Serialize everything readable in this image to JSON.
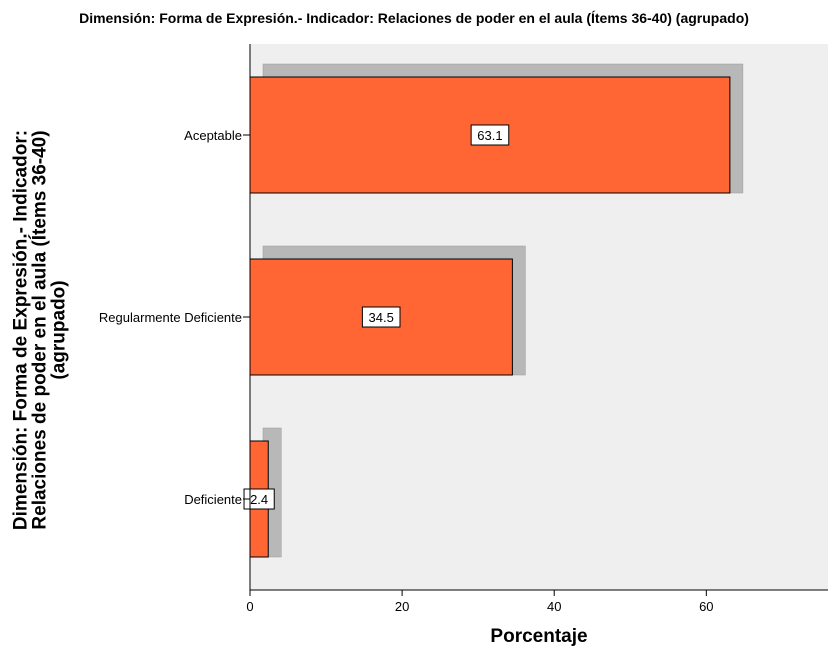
{
  "chart_data": {
    "type": "bar",
    "orientation": "horizontal",
    "title": "Dimensión: Forma de Expresión.- Indicador: Relaciones de poder en el aula (Ítems 36-40) (agrupado)",
    "xlabel": "Porcentaje",
    "ylabel_lines": [
      "Dimensión: Forma de Expresión.- Indicador:",
      "Relaciones de poder en el aula (Ítems 36-40)",
      "(agrupado)"
    ],
    "categories": [
      "Aceptable",
      "Regularmente Deficiente",
      "Deficiente"
    ],
    "values": [
      63.1,
      34.5,
      2.4
    ],
    "data_labels": [
      "63.1",
      "34.5",
      "2.4"
    ],
    "xlim": [
      0,
      76
    ],
    "xticks": [
      0,
      20,
      40,
      60
    ],
    "grid": false,
    "colors": {
      "bar": "#ff6633",
      "shadow": "#b8b8b8",
      "plot_background": "#efefef"
    }
  }
}
